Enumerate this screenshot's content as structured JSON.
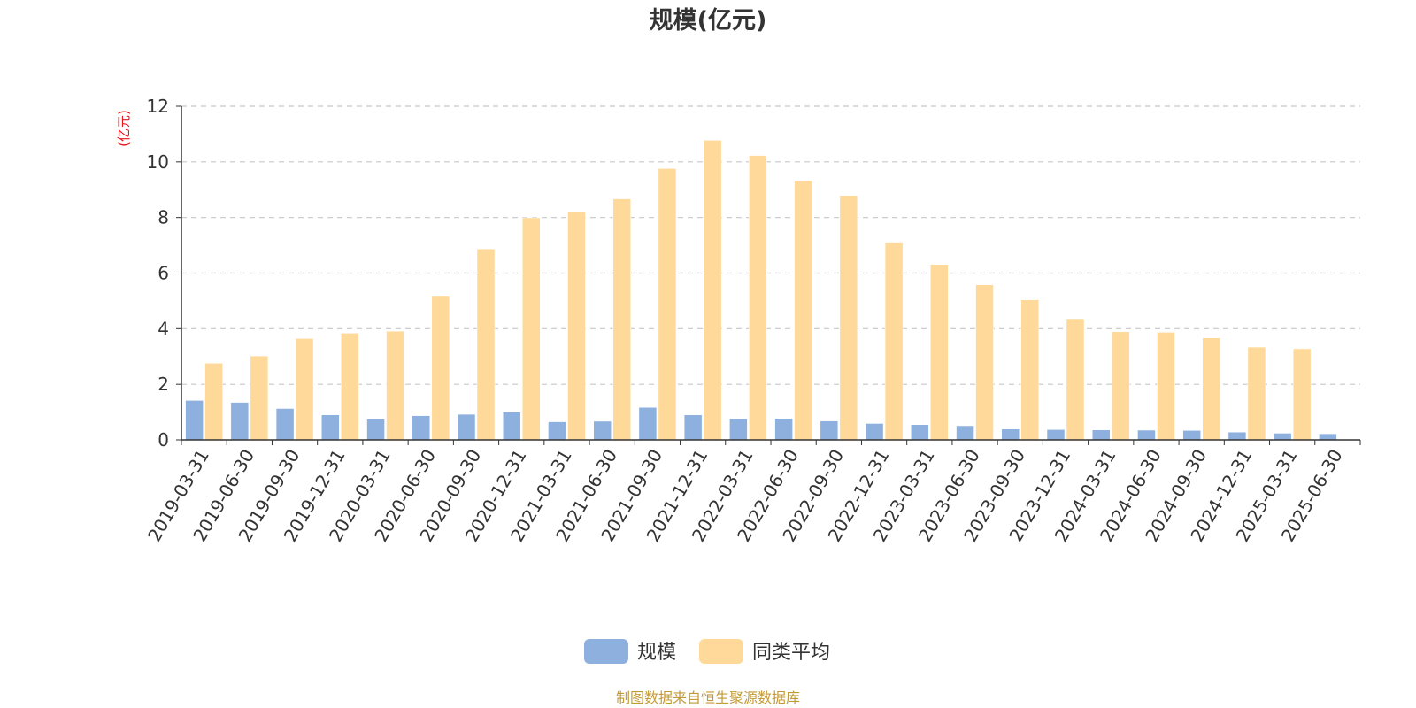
{
  "chart_data": {
    "type": "bar",
    "title": "规模(亿元)",
    "ylabel": "(亿元)",
    "xlabel": "",
    "ylim": [
      0,
      12
    ],
    "yticks": [
      0,
      2,
      4,
      6,
      8,
      10,
      12
    ],
    "grid": true,
    "legend_position": "bottom-center",
    "categories": [
      "2019-03-31",
      "2019-06-30",
      "2019-09-30",
      "2019-12-31",
      "2020-03-31",
      "2020-06-30",
      "2020-09-30",
      "2020-12-31",
      "2021-03-31",
      "2021-06-30",
      "2021-09-30",
      "2021-12-31",
      "2022-03-31",
      "2022-06-30",
      "2022-09-30",
      "2022-12-31",
      "2023-03-31",
      "2023-06-30",
      "2023-09-30",
      "2023-12-31",
      "2024-03-31",
      "2024-06-30",
      "2024-09-30",
      "2024-12-31",
      "2025-03-31",
      "2025-06-30"
    ],
    "series": [
      {
        "name": "规模",
        "color": "#8EB0DF",
        "values": [
          1.42,
          1.35,
          1.13,
          0.9,
          0.74,
          0.87,
          0.92,
          1.0,
          0.65,
          0.67,
          1.17,
          0.9,
          0.76,
          0.77,
          0.68,
          0.59,
          0.55,
          0.51,
          0.39,
          0.37,
          0.36,
          0.35,
          0.34,
          0.28,
          0.24,
          0.22
        ]
      },
      {
        "name": "同类平均",
        "color": "#FFD999",
        "values": [
          2.76,
          3.02,
          3.65,
          3.84,
          3.91,
          5.16,
          6.87,
          7.99,
          8.19,
          8.67,
          9.76,
          10.78,
          10.23,
          9.33,
          8.78,
          7.08,
          6.31,
          5.58,
          5.04,
          4.33,
          3.89,
          3.87,
          3.67,
          3.34,
          3.28,
          null
        ]
      }
    ]
  },
  "unit_label_color": "#E8151B",
  "footer": {
    "source": "制图数据来自恒生聚源数据库",
    "color": "#C39B36"
  }
}
